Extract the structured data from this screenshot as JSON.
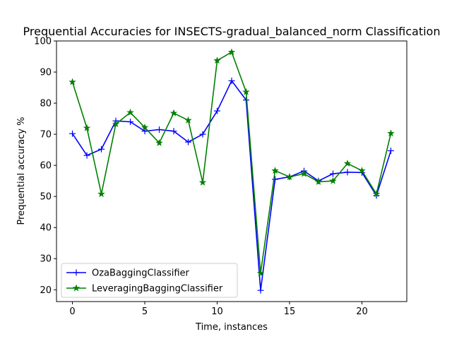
{
  "chart_data": {
    "type": "line",
    "title": "Prequential Accuracies for INSECTS-gradual_balanced_norm Classification",
    "xlabel": "Time, instances",
    "ylabel": "Prequential accuracy %",
    "xlim": [
      -1.1,
      23.1
    ],
    "ylim": [
      16.2,
      100
    ],
    "xticks": [
      0,
      5,
      10,
      15,
      20
    ],
    "yticks": [
      20,
      30,
      40,
      50,
      60,
      70,
      80,
      90,
      100
    ],
    "legend_position": "lower left",
    "grid": false,
    "x": [
      0,
      1,
      2,
      3,
      4,
      5,
      6,
      7,
      8,
      9,
      10,
      11,
      12,
      13,
      14,
      15,
      16,
      17,
      18,
      19,
      20,
      21,
      22
    ],
    "series": [
      {
        "name": "OzaBaggingClassifier",
        "color": "#0000ff",
        "marker": "plus",
        "values": [
          70.2,
          63.2,
          65.2,
          74.3,
          74.0,
          71.0,
          71.5,
          71.0,
          67.5,
          70.0,
          77.5,
          87.2,
          81.0,
          19.8,
          55.5,
          56.3,
          58.2,
          55.0,
          57.3,
          57.8,
          57.7,
          50.3,
          64.7
        ]
      },
      {
        "name": "LeveragingBaggingClassifier",
        "color": "#008000",
        "marker": "star",
        "values": [
          86.8,
          72.0,
          50.8,
          73.3,
          77.0,
          72.2,
          67.2,
          76.8,
          74.5,
          54.5,
          93.7,
          96.4,
          83.6,
          25.3,
          58.3,
          56.3,
          57.3,
          54.7,
          55.0,
          60.6,
          58.3,
          50.8,
          70.3
        ]
      }
    ]
  }
}
